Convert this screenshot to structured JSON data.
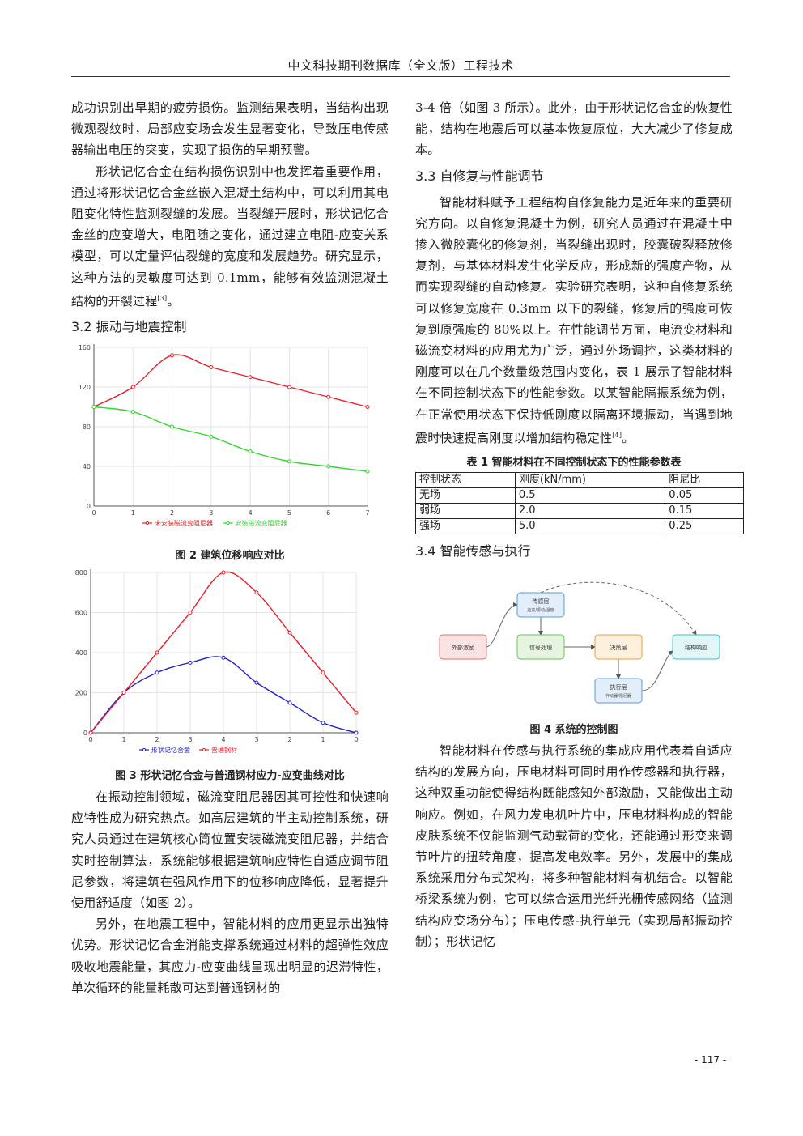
{
  "header": {
    "title": "中文科技期刊数据库（全文版）工程技术"
  },
  "left": {
    "p1": "成功识别出早期的疲劳损伤。监测结果表明，当结构出现微观裂纹时，局部应变场会发生显著变化，导致压电传感器输出电压的突变，实现了损伤的早期预警。",
    "p2": "形状记忆合金在结构损伤识别中也发挥着重要作用，通过将形状记忆合金丝嵌入混凝土结构中，可以利用其电阻变化特性监测裂缝的发展。当裂缝开展时，形状记忆合金丝的应变增大，电阻随之变化，通过建立电阻-应变关系模型，可以定量评估裂缝的宽度和发展趋势。研究显示，这种方法的灵敏度可达到 0.1mm，能够有效监测混凝土结构的开裂过程",
    "p2_ref": "[3]",
    "p2_end": "。",
    "h32": "3.2  振动与地震控制",
    "fig2_caption": "图 2    建筑位移响应对比",
    "fig3_caption": "图 3    形状记忆合金与普通钢材应力-应变曲线对比",
    "p3": "在振动控制领域，磁流变阻尼器因其可控性和快速响应特性成为研究热点。如高层建筑的半主动控制系统，研究人员通过在建筑核心筒位置安装磁流变阻尼器，并结合实时控制算法，系统能够根据建筑响应特性自适应调节阻尼参数，将建筑在强风作用下的位移响应降低，显著提升使用舒适度（如图 2）。",
    "p4": "另外，在地震工程中，智能材料的应用更显示出独特优势。形状记忆合金消能支撑系统通过材料的超弹性效应吸收地震能量，其应力-应变曲线呈现出明显的迟滞特性，单次循环的能量耗散可达到普通钢材的"
  },
  "right": {
    "p1": "3-4 倍（如图 3 所示）。此外，由于形状记忆合金的恢复性能，结构在地震后可以基本恢复原位，大大减少了修复成本。",
    "h33": "3.3  自修复与性能调节",
    "p2": "智能材料赋予工程结构自修复能力是近年来的重要研究方向。以自修复混凝土为例，研究人员通过在混凝土中掺入微胶囊化的修复剂，当裂缝出现时，胶囊破裂释放修复剂，与基体材料发生化学反应，形成新的强度产物，从而实现裂缝的自动修复。实验研究表明，这种自修复系统可以修复宽度在 0.3mm 以下的裂缝，修复后的强度可恢复到原强度的 80%以上。在性能调节方面，电流变材料和磁流变材料的应用尤为广泛，通过外场调控，这类材料的刚度可以在几个数量级范围内变化，表 1 展示了智能材料在不同控制状态下的性能参数。以某智能隔振系统为例，在正常使用状态下保持低刚度以隔离环境振动，当遇到地震时快速提高刚度以增加结构稳定性",
    "p2_ref": "[4]",
    "p2_end": "。",
    "table_caption": "表 1    智能材料在不同控制状态下的性能参数表",
    "table_headers": [
      "控制状态",
      "刚度(kN/mm)",
      "阻尼比"
    ],
    "table_rows": [
      [
        "无场",
        "0.5",
        "0.05"
      ],
      [
        "弱场",
        "2.0",
        "0.15"
      ],
      [
        "强场",
        "5.0",
        "0.25"
      ]
    ],
    "h34": "3.4  智能传感与执行",
    "fig4_caption": "图 4    系统的控制图",
    "p3": "智能材料在传感与执行系统的集成应用代表着自适应结构的发展方向，压电材料可同时用作传感器和执行器，这种双重功能使得结构既能感知外部激励，又能做出主动响应。例如，在风力发电机叶片中，压电材料构成的智能皮肤系统不仅能监测气动载荷的变化，还能通过形变来调节叶片的扭转角度，提高发电效率。另外，发展中的集成系统采用分布式架构，将多种智能材料有机结合。以智能桥梁系统为例，它可以综合运用光纤光栅传感网络（监测结构应变场分布）；压电传感-执行单元（实现局部振动控制）；形状记忆"
  },
  "diagram": {
    "nodes": [
      {
        "id": "input",
        "label": "外部激励",
        "color": "#e07070",
        "fill": "#fbe3e3"
      },
      {
        "id": "sensor",
        "label": "传感层",
        "sub": "应变/振动/温度",
        "color": "#5b9bd5",
        "fill": "#e2eefa"
      },
      {
        "id": "process",
        "label": "信号处理",
        "color": "#6dbf5a",
        "fill": "#e6f5e0"
      },
      {
        "id": "decide",
        "label": "决策层",
        "color": "#e8a040",
        "fill": "#fdf0dc"
      },
      {
        "id": "actuator",
        "label": "执行层",
        "sub": "作动器/阻尼器",
        "color": "#5b9bd5",
        "fill": "#e2eefa"
      },
      {
        "id": "output",
        "label": "结构响应",
        "color": "#3cc0c8",
        "fill": "#e0f6f7"
      }
    ]
  },
  "page_number": "- 117 -",
  "chart_data": [
    {
      "type": "line",
      "x": [
        0,
        1,
        2,
        3,
        4,
        5,
        6,
        7
      ],
      "xlim": [
        0,
        7
      ],
      "ylim": [
        0,
        160
      ],
      "yticks": [
        0,
        40,
        80,
        120,
        160
      ],
      "series": [
        {
          "name": "未安装磁流变阻尼器",
          "color": "#e8202a",
          "values": [
            100,
            120,
            152,
            140,
            130,
            120,
            110,
            100
          ]
        },
        {
          "name": "安装磁流变阻尼器",
          "color": "#2ed82e",
          "values": [
            100,
            95,
            80,
            70,
            55,
            45,
            40,
            35
          ]
        }
      ],
      "grid": true,
      "legend": "bottom"
    },
    {
      "type": "line",
      "categories": [
        "0",
        "1",
        "2",
        "3",
        "4",
        "3",
        "2",
        "1",
        "0"
      ],
      "ylim": [
        0,
        800
      ],
      "yticks": [
        0,
        200,
        400,
        600,
        800
      ],
      "series": [
        {
          "name": "形状记忆合金",
          "color": "#2020d0",
          "values": [
            0,
            200,
            300,
            350,
            375,
            250,
            150,
            50,
            0
          ]
        },
        {
          "name": "普通钢材",
          "color": "#e8202a",
          "values": [
            0,
            200,
            400,
            600,
            800,
            700,
            500,
            300,
            100
          ]
        }
      ],
      "grid": true,
      "legend": "bottom"
    }
  ]
}
